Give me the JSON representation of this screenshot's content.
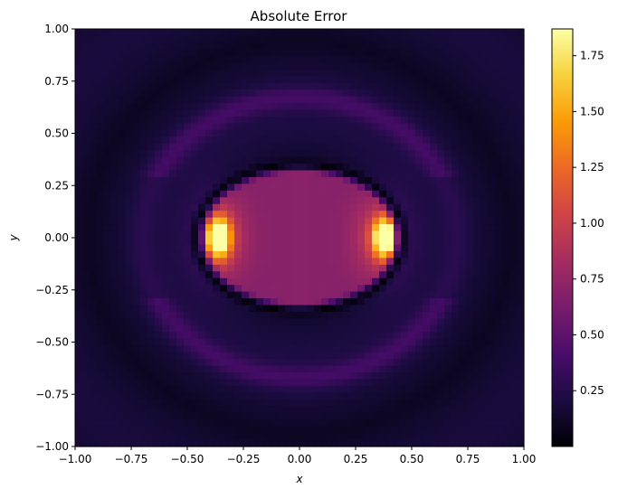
{
  "chart_data": {
    "type": "heatmap",
    "title": "Absolute Error",
    "xlabel": "x",
    "ylabel": "y",
    "xlim": [
      -1.0,
      1.0
    ],
    "ylim": [
      -1.0,
      1.0
    ],
    "x_ticks": [
      "−1.00",
      "−0.75",
      "−0.50",
      "−0.25",
      "0.00",
      "0.25",
      "0.50",
      "0.75",
      "1.00"
    ],
    "y_ticks": [
      "−1.00",
      "−0.75",
      "−0.50",
      "−0.25",
      "0.00",
      "0.25",
      "0.50",
      "0.75",
      "1.00"
    ],
    "colormap": "inferno",
    "colorbar": {
      "range": [
        0.0,
        1.87
      ],
      "ticks": [
        "0.25",
        "0.50",
        "0.75",
        "1.00",
        "1.25",
        "1.50",
        "1.75"
      ]
    },
    "grid": false,
    "features": {
      "hot_spots": [
        {
          "x": -0.36,
          "y": 0.0,
          "value": 1.87
        },
        {
          "x": 0.38,
          "y": 0.0,
          "value": 1.85
        }
      ],
      "central_region_value": 0.6,
      "near_zero_ring_radius_y": 0.34,
      "background_value": 0.12
    }
  },
  "colors": {
    "inferno_stops": [
      "#000004",
      "#1b0c41",
      "#4a0c6b",
      "#781c6d",
      "#a52c60",
      "#cf4446",
      "#ed6925",
      "#fb9b06",
      "#f7d13d",
      "#fcffa4"
    ]
  }
}
